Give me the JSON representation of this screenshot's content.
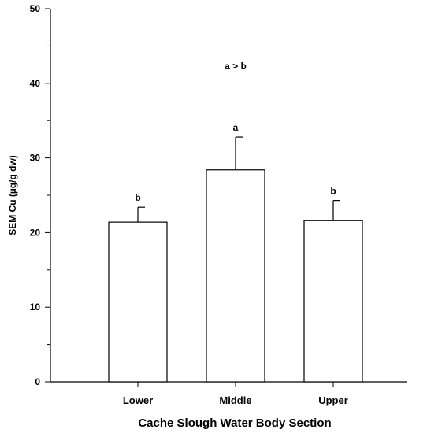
{
  "chart_data": {
    "type": "bar",
    "categories": [
      "Lower",
      "Middle",
      "Upper"
    ],
    "values": [
      21.4,
      28.4,
      21.6
    ],
    "errors": [
      2.0,
      4.4,
      2.7
    ],
    "group_letters": [
      "b",
      "a",
      "b"
    ],
    "annotation": "a > b",
    "xlabel": "Cache Slough Water Body Section",
    "ylabel": "SEM Cu (µg/g dw)",
    "ylim": [
      0,
      50
    ],
    "yticks": [
      0,
      10,
      20,
      30,
      40,
      50
    ],
    "grid": false,
    "colors": {
      "bar_fill": "#ffffff",
      "stroke": "#000000"
    }
  }
}
